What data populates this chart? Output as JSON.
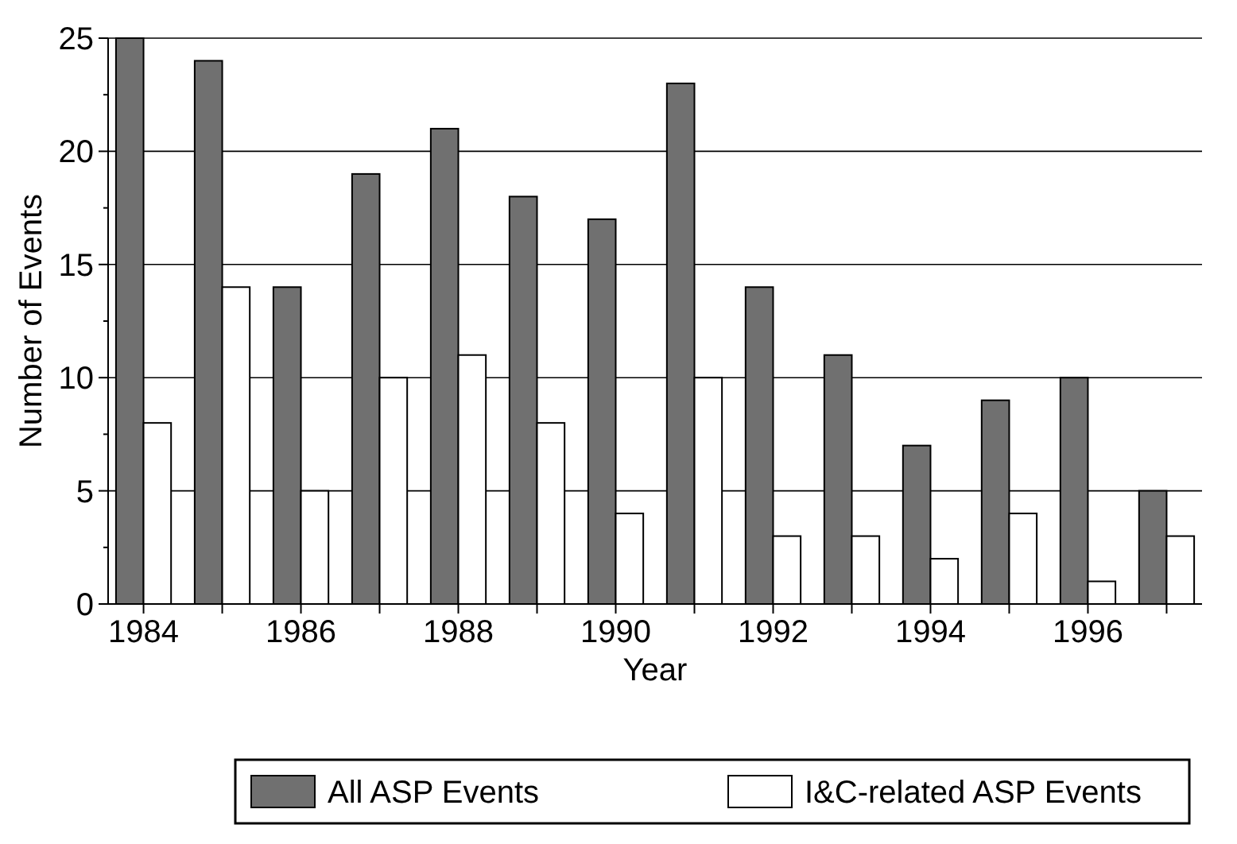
{
  "chart_data": {
    "type": "bar",
    "xlabel": "Year",
    "ylabel": "Number of Events",
    "categories": [
      "1984",
      null,
      "1986",
      null,
      "1988",
      null,
      "1990",
      null,
      "1992",
      null,
      "1994",
      null,
      "1996",
      null
    ],
    "series": [
      {
        "name": "All ASP Events",
        "color": "#707070",
        "values": [
          25,
          24,
          14,
          19,
          21,
          18,
          17,
          23,
          14,
          11,
          7,
          9,
          10,
          5
        ]
      },
      {
        "name": "I&C-related ASP Events",
        "color": "#ffffff",
        "values": [
          8,
          14,
          5,
          10,
          11,
          8,
          4,
          10,
          3,
          3,
          2,
          4,
          1,
          3
        ]
      }
    ],
    "ylim": [
      0,
      25
    ],
    "yticks": [
      0,
      5,
      10,
      15,
      20,
      25
    ],
    "grid": "y",
    "legend": "bottom"
  }
}
